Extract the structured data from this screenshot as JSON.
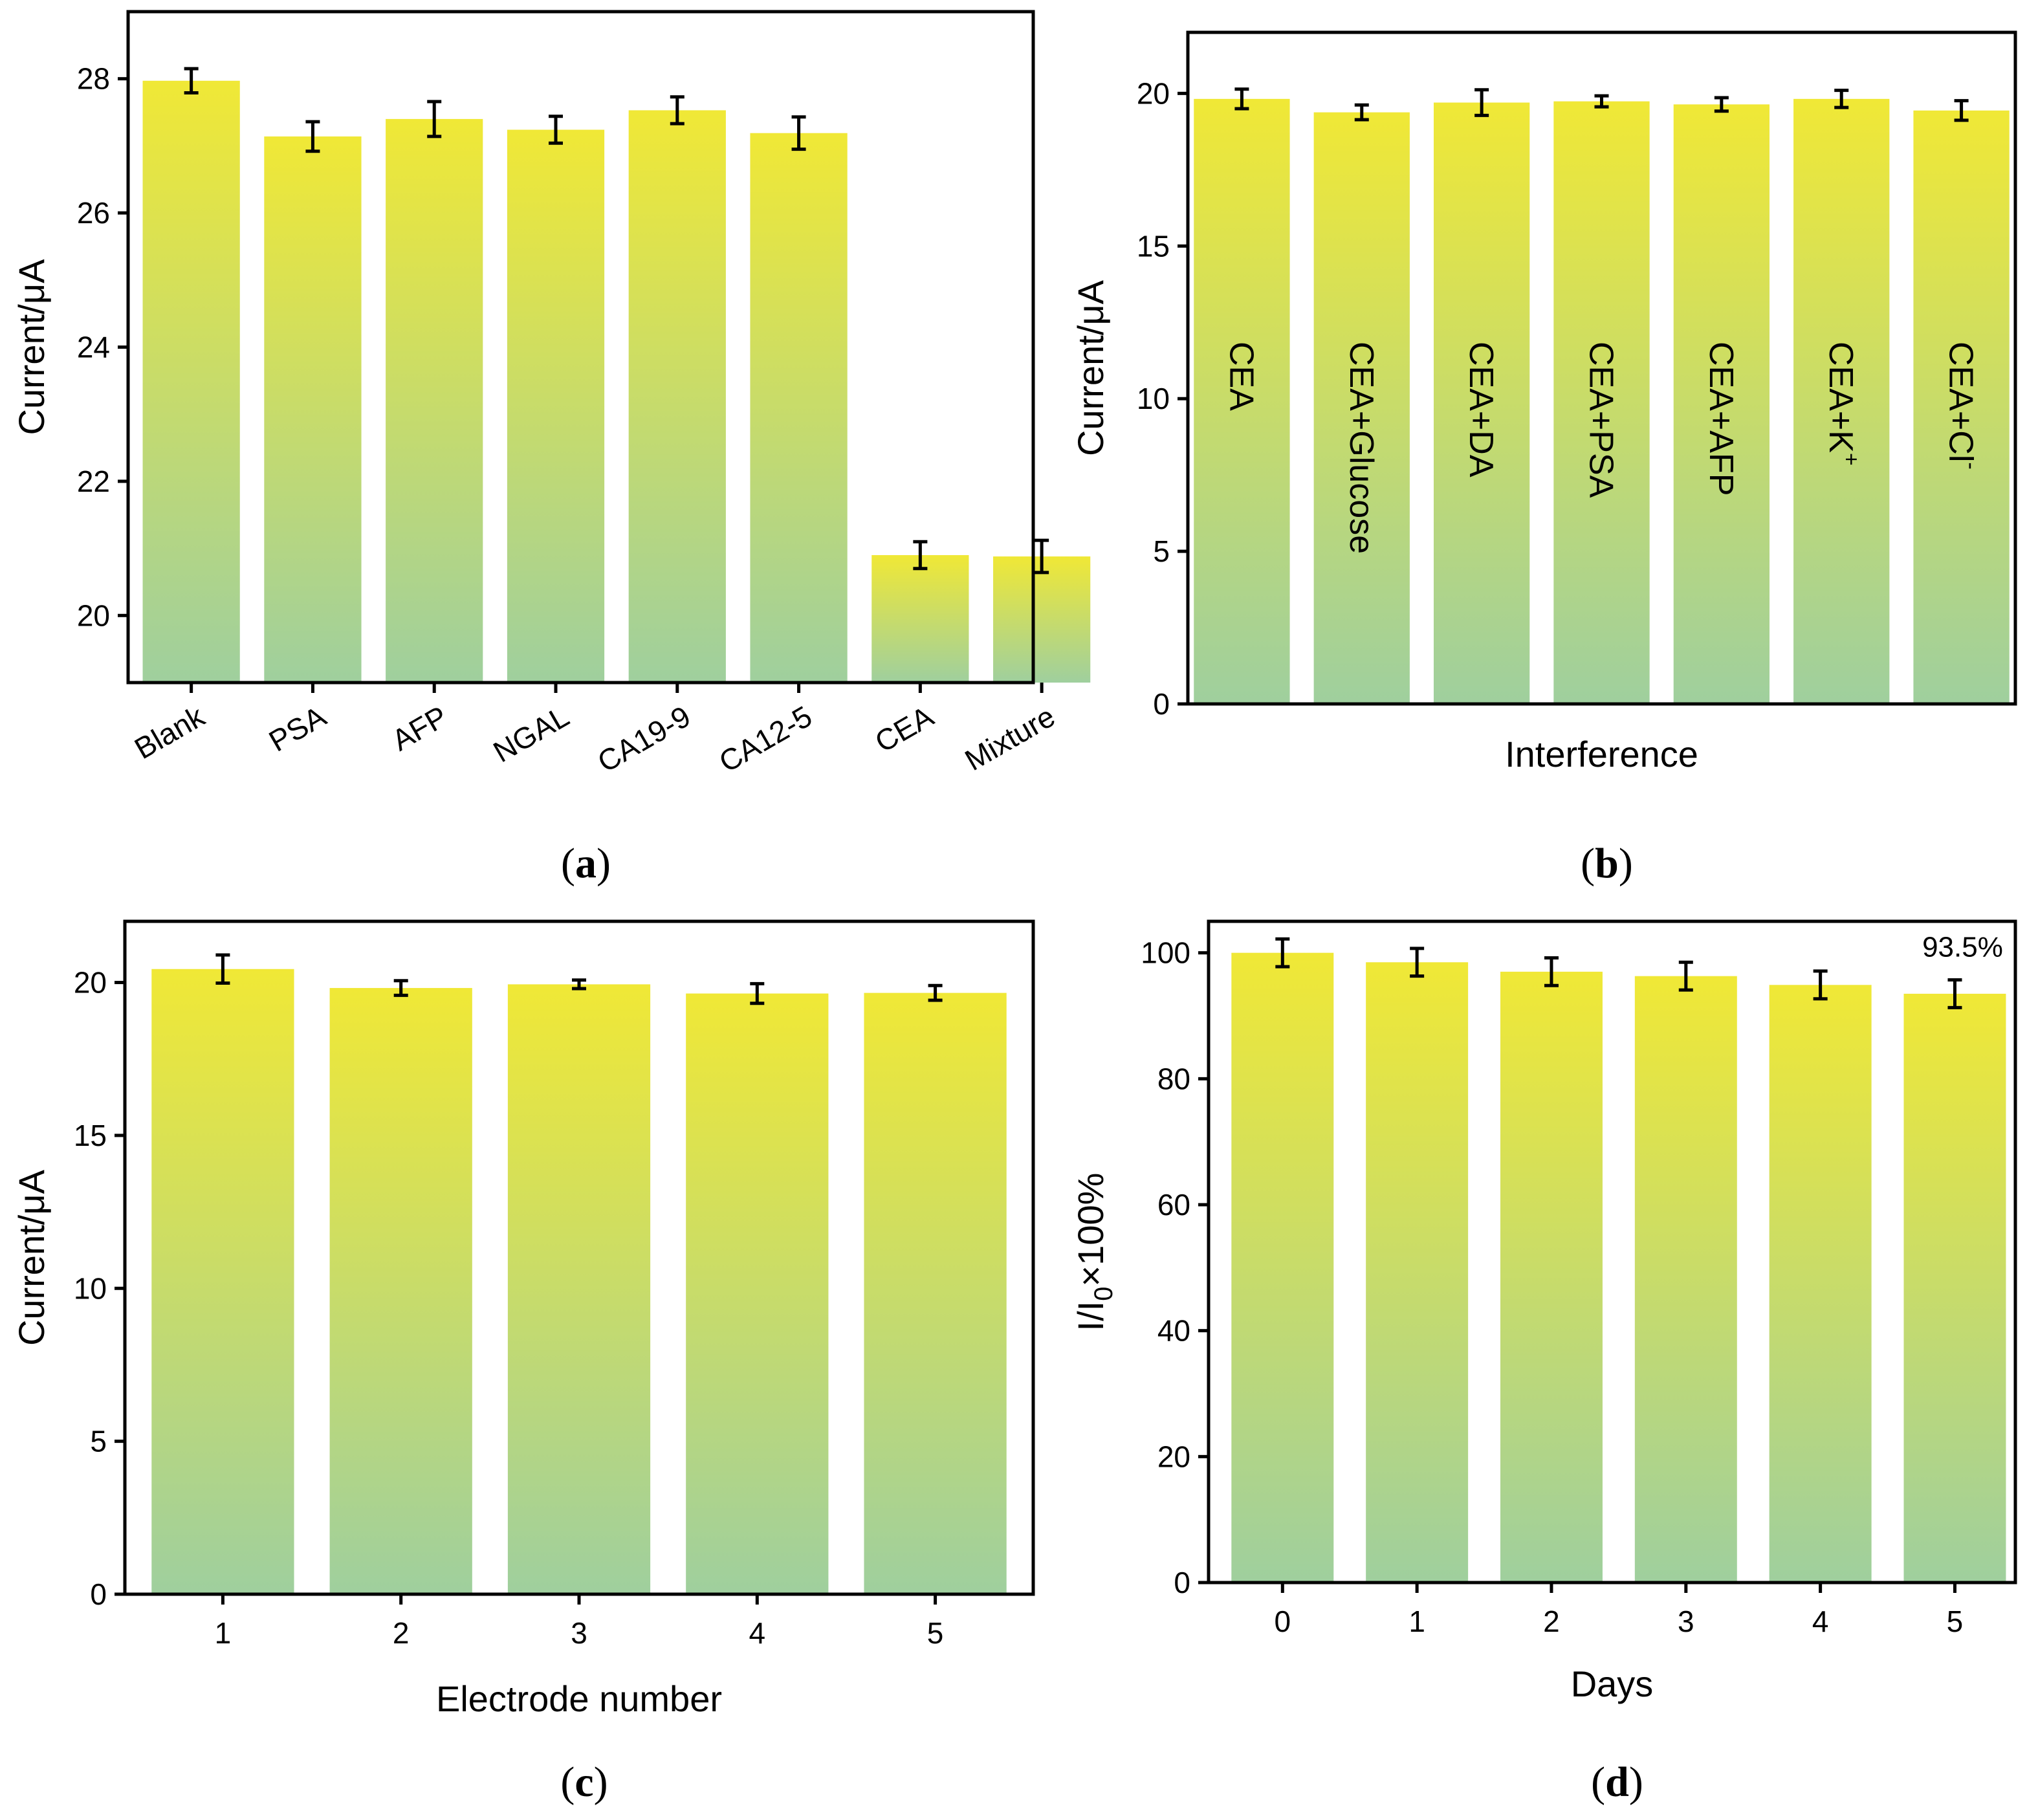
{
  "colors": {
    "bar_top": "#f0e836",
    "bar_bottom": "#9fcf9e",
    "axis": "#000000",
    "errorbar": "#000000"
  },
  "chart_data": [
    {
      "id": "a",
      "type": "bar",
      "panel_label": {
        "open": "(",
        "letter": "a",
        "close": ")"
      },
      "categories": [
        "Blank",
        "PSA",
        "AFP",
        "NGAL",
        "CA19-9",
        "CA12-5",
        "CEA",
        "Mixture"
      ],
      "values": [
        27.97,
        27.14,
        27.4,
        27.24,
        27.53,
        27.19,
        20.9,
        20.88
      ],
      "errors": [
        0.18,
        0.22,
        0.26,
        0.2,
        0.2,
        0.24,
        0.2,
        0.24
      ],
      "xlabel": "",
      "ylabel": "Current/μA",
      "ylim": [
        19.0,
        29.0
      ],
      "yticks": [
        20,
        22,
        24,
        26,
        28
      ],
      "rotated_xticks": true,
      "grid": false,
      "legend": "none"
    },
    {
      "id": "b",
      "type": "bar",
      "panel_label": {
        "open": "(",
        "letter": "b",
        "close": ")"
      },
      "categories": [
        {
          "base": "CEA",
          "sup": ""
        },
        {
          "base": "CEA+Glucose",
          "sup": ""
        },
        {
          "base": "CEA+DA",
          "sup": ""
        },
        {
          "base": "CEA+PSA",
          "sup": ""
        },
        {
          "base": "CEA+AFP",
          "sup": ""
        },
        {
          "base": "CEA+K",
          "sup": "+"
        },
        {
          "base": "CEA+Cl",
          "sup": "-"
        }
      ],
      "values": [
        19.82,
        19.38,
        19.7,
        19.74,
        19.64,
        19.82,
        19.44
      ],
      "errors": [
        0.32,
        0.24,
        0.42,
        0.18,
        0.22,
        0.28,
        0.32
      ],
      "xlabel": "Interference",
      "ylabel": "Current/μA",
      "ylim": [
        0,
        22
      ],
      "yticks": [
        0,
        5,
        10,
        15,
        20
      ],
      "category_labels_in_bars": true,
      "grid": false,
      "legend": "none"
    },
    {
      "id": "c",
      "type": "bar",
      "panel_label": {
        "open": "(",
        "letter": "c",
        "close": ")"
      },
      "categories": [
        "1",
        "2",
        "3",
        "4",
        "5"
      ],
      "values": [
        20.44,
        19.82,
        19.94,
        19.64,
        19.66
      ],
      "errors": [
        0.46,
        0.24,
        0.14,
        0.32,
        0.24
      ],
      "xlabel": "Electrode number",
      "ylabel": "Current/μA",
      "ylim": [
        0,
        22
      ],
      "yticks": [
        0,
        5,
        10,
        15,
        20
      ],
      "grid": false,
      "legend": "none"
    },
    {
      "id": "d",
      "type": "bar",
      "panel_label": {
        "open": "(",
        "letter": "d",
        "close": ")"
      },
      "categories": [
        "0",
        "1",
        "2",
        "3",
        "4",
        "5"
      ],
      "values": [
        100.0,
        98.5,
        97.0,
        96.3,
        94.9,
        93.5
      ],
      "errors": [
        2.2,
        2.2,
        2.2,
        2.2,
        2.2,
        2.2
      ],
      "xlabel": "Days",
      "ylabel": {
        "main": "I/I",
        "sub": "0",
        "rest": "×100%"
      },
      "ylim": [
        0,
        105
      ],
      "yticks": [
        0,
        20,
        40,
        60,
        80,
        100
      ],
      "annotations": [
        {
          "category": "5",
          "text": "93.5%"
        }
      ],
      "grid": false,
      "legend": "none"
    }
  ]
}
